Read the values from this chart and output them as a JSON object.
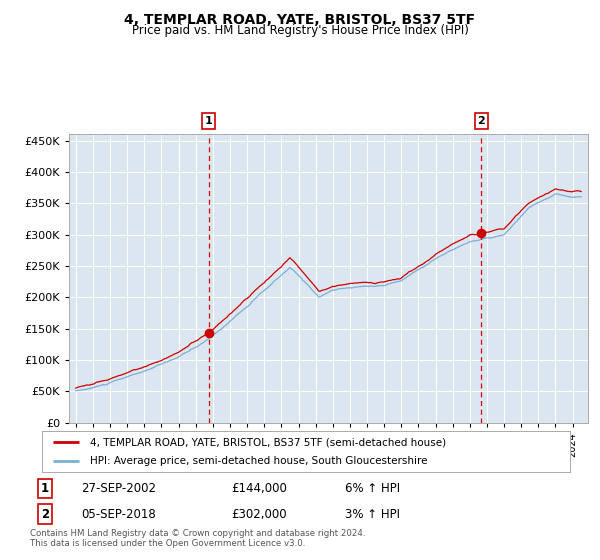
{
  "title": "4, TEMPLAR ROAD, YATE, BRISTOL, BS37 5TF",
  "subtitle": "Price paid vs. HM Land Registry's House Price Index (HPI)",
  "background_color": "#ffffff",
  "plot_bg_color": "#dce6f1",
  "red_line_color": "#cc0000",
  "blue_line_color": "#7bafd4",
  "marker_color": "#cc0000",
  "dashed_line_color": "#cc0000",
  "legend_entry1": "4, TEMPLAR ROAD, YATE, BRISTOL, BS37 5TF (semi-detached house)",
  "legend_entry2": "HPI: Average price, semi-detached house, South Gloucestershire",
  "transaction1_label": "1",
  "transaction1_date": "27-SEP-2002",
  "transaction1_price": "£144,000",
  "transaction1_hpi": "6% ↑ HPI",
  "transaction1_year": 2002.75,
  "transaction1_value": 144000,
  "transaction2_label": "2",
  "transaction2_date": "05-SEP-2018",
  "transaction2_price": "£302,000",
  "transaction2_hpi": "3% ↑ HPI",
  "transaction2_year": 2018.67,
  "transaction2_value": 302000,
  "footer_line1": "Contains HM Land Registry data © Crown copyright and database right 2024.",
  "footer_line2": "This data is licensed under the Open Government Licence v3.0.",
  "ylim": [
    0,
    460000
  ],
  "yticks": [
    0,
    50000,
    100000,
    150000,
    200000,
    250000,
    300000,
    350000,
    400000,
    450000
  ],
  "xlim_start": 1994.6,
  "xlim_end": 2024.9
}
